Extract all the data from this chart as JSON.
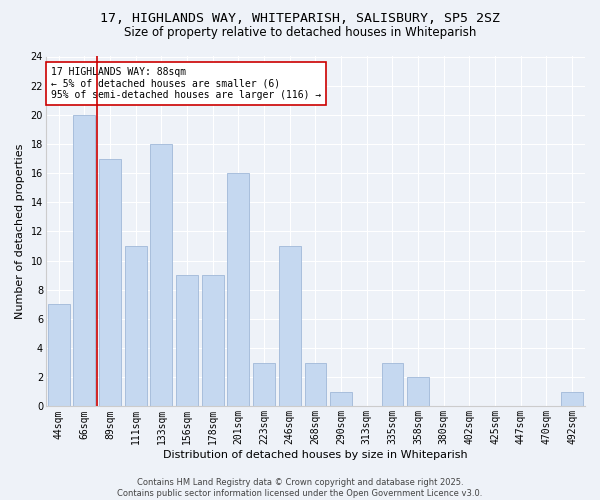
{
  "title_line1": "17, HIGHLANDS WAY, WHITEPARISH, SALISBURY, SP5 2SZ",
  "title_line2": "Size of property relative to detached houses in Whiteparish",
  "xlabel": "Distribution of detached houses by size in Whiteparish",
  "ylabel": "Number of detached properties",
  "categories": [
    "44sqm",
    "66sqm",
    "89sqm",
    "111sqm",
    "133sqm",
    "156sqm",
    "178sqm",
    "201sqm",
    "223sqm",
    "246sqm",
    "268sqm",
    "290sqm",
    "313sqm",
    "335sqm",
    "358sqm",
    "380sqm",
    "402sqm",
    "425sqm",
    "447sqm",
    "470sqm",
    "492sqm"
  ],
  "values": [
    7,
    20,
    17,
    11,
    18,
    9,
    9,
    16,
    3,
    11,
    3,
    1,
    0,
    3,
    2,
    0,
    0,
    0,
    0,
    0,
    1
  ],
  "bar_color": "#c5d8f0",
  "bar_edge_color": "#a0b8d8",
  "vline_color": "#cc0000",
  "vline_x": 1.5,
  "annotation_text": "17 HIGHLANDS WAY: 88sqm\n← 5% of detached houses are smaller (6)\n95% of semi-detached houses are larger (116) →",
  "annotation_box_color": "#ffffff",
  "annotation_box_edge": "#cc0000",
  "ylim": [
    0,
    24
  ],
  "yticks": [
    0,
    2,
    4,
    6,
    8,
    10,
    12,
    14,
    16,
    18,
    20,
    22,
    24
  ],
  "footer_text": "Contains HM Land Registry data © Crown copyright and database right 2025.\nContains public sector information licensed under the Open Government Licence v3.0.",
  "background_color": "#eef2f8",
  "grid_color": "#ffffff",
  "title_fontsize": 9.5,
  "subtitle_fontsize": 8.5,
  "axis_label_fontsize": 8,
  "tick_fontsize": 7,
  "annotation_fontsize": 7,
  "footer_fontsize": 6
}
